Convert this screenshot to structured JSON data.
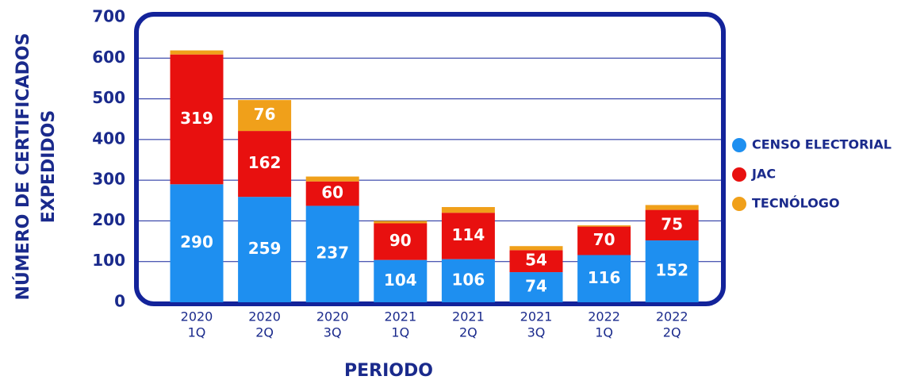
{
  "chart_data": {
    "type": "stacked_bar",
    "ylabel": [
      "NÚMERO DE CERTIFICADOS",
      "EXPEDIDOS"
    ],
    "xlabel": "PERIODO",
    "categories": [
      [
        "2020",
        "1Q"
      ],
      [
        "2020",
        "2Q"
      ],
      [
        "2020",
        "3Q"
      ],
      [
        "2021",
        "1Q"
      ],
      [
        "2021",
        "2Q"
      ],
      [
        "2021",
        "3Q"
      ],
      [
        "2022",
        "1Q"
      ],
      [
        "2022",
        "2Q"
      ]
    ],
    "series": [
      {
        "name": "CENSO ELECTORIAL",
        "color": "#1e8ff0",
        "values": [
          290,
          259,
          237,
          104,
          106,
          74,
          116,
          152
        ]
      },
      {
        "name": "JAC",
        "color": "#e8100f",
        "values": [
          319,
          162,
          60,
          90,
          114,
          54,
          70,
          75
        ]
      },
      {
        "name": "TECNÓLOGO",
        "color": "#f0a01a",
        "values": [
          10,
          76,
          12,
          6,
          14,
          10,
          3,
          12
        ],
        "value_labels": [
          null,
          "76",
          null,
          null,
          null,
          null,
          null,
          null
        ]
      }
    ],
    "ylim": [
      0,
      700
    ],
    "yticks": [
      0,
      100,
      200,
      300,
      400,
      500,
      600,
      700
    ],
    "grid": true,
    "legend": "right"
  }
}
